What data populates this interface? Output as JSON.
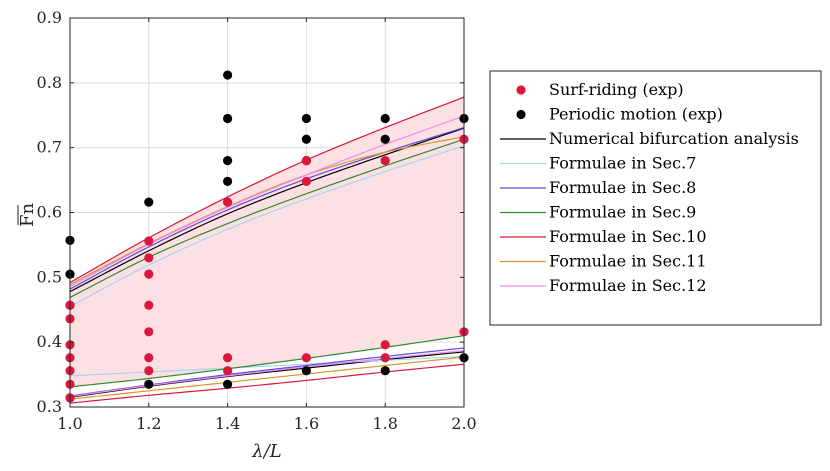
{
  "chart_data": {
    "type": "scatter",
    "title": "",
    "xlabel": "λ/L",
    "ylabel": "Fn (overline)",
    "xlim": [
      1.0,
      2.0
    ],
    "ylim": [
      0.3,
      0.9
    ],
    "x_ticks": [
      1.0,
      1.2,
      1.4,
      1.6,
      1.8,
      2.0
    ],
    "x_tick_labels": [
      "1.0",
      "1.2",
      "1.4",
      "1.6",
      "1.8",
      "2.0"
    ],
    "y_ticks": [
      0.3,
      0.4,
      0.5,
      0.6,
      0.7,
      0.8,
      0.9
    ],
    "y_tick_labels": [
      "0.3",
      "0.4",
      "0.5",
      "0.6",
      "0.7",
      "0.8",
      "0.9"
    ],
    "grid": true,
    "legend_position": "outside-right",
    "shaded_region": {
      "color": "#fde0e4",
      "upper_series": "Formulae in Sec.10",
      "lower_series": "Formulae in Sec.9"
    },
    "scatter_series": [
      {
        "name": "Surf-riding (exp)",
        "color": "#d9183b",
        "x": [
          1.0,
          1.0,
          1.0,
          1.0,
          1.0,
          1.0,
          1.0,
          1.2,
          1.2,
          1.2,
          1.2,
          1.2,
          1.2,
          1.2,
          1.4,
          1.4,
          1.4,
          1.6,
          1.6,
          1.6,
          1.8,
          1.8,
          1.8,
          2.0,
          2.0
        ],
        "y": [
          0.314,
          0.335,
          0.356,
          0.376,
          0.396,
          0.436,
          0.457,
          0.356,
          0.376,
          0.416,
          0.457,
          0.505,
          0.53,
          0.556,
          0.356,
          0.376,
          0.616,
          0.376,
          0.648,
          0.68,
          0.376,
          0.396,
          0.68,
          0.416,
          0.713
        ]
      },
      {
        "name": "Periodic motion (exp)",
        "color": "#000000",
        "x": [
          1.0,
          1.0,
          1.0,
          1.0,
          1.2,
          1.2,
          1.4,
          1.4,
          1.4,
          1.4,
          1.4,
          1.6,
          1.6,
          1.6,
          1.6,
          1.8,
          1.8,
          1.8,
          2.0,
          2.0
        ],
        "y": [
          0.314,
          0.457,
          0.505,
          0.557,
          0.335,
          0.616,
          0.335,
          0.648,
          0.68,
          0.745,
          0.812,
          0.356,
          0.68,
          0.713,
          0.745,
          0.356,
          0.713,
          0.745,
          0.376,
          0.745
        ]
      }
    ],
    "line_series": [
      {
        "name": "Numerical bifurcation analysis",
        "color": "#000000",
        "x": [
          1.0,
          1.2,
          1.4,
          1.6,
          1.8,
          2.0
        ],
        "upper": [
          0.478,
          0.541,
          0.598,
          0.646,
          0.689,
          0.73
        ],
        "lower": [
          0.315,
          0.332,
          0.347,
          0.36,
          0.373,
          0.385
        ]
      },
      {
        "name": "Formulae in Sec.7",
        "color": "#a8d4ec",
        "x": [
          1.0,
          1.2,
          1.4,
          1.6,
          1.8,
          2.0
        ],
        "upper": [
          0.455,
          0.519,
          0.574,
          0.621,
          0.663,
          0.703
        ],
        "lower": [
          0.348,
          0.354,
          0.36,
          0.366,
          0.372,
          0.378
        ]
      },
      {
        "name": "Formulae in Sec.8",
        "color": "#5a4de0",
        "x": [
          1.0,
          1.2,
          1.4,
          1.6,
          1.8,
          2.0
        ],
        "upper": [
          0.482,
          0.547,
          0.604,
          0.652,
          0.693,
          0.731
        ],
        "lower": [
          0.317,
          0.334,
          0.35,
          0.364,
          0.378,
          0.391
        ]
      },
      {
        "name": "Formulae in Sec.9",
        "color": "#2e8b2e",
        "x": [
          1.0,
          1.2,
          1.4,
          1.6,
          1.8,
          2.0
        ],
        "upper": [
          0.469,
          0.531,
          0.583,
          0.629,
          0.672,
          0.713
        ],
        "lower": [
          0.331,
          0.344,
          0.359,
          0.375,
          0.392,
          0.41
        ]
      },
      {
        "name": "Formulae in Sec.10",
        "color": "#d9183b",
        "x": [
          1.0,
          1.2,
          1.4,
          1.6,
          1.8,
          2.0
        ],
        "upper": [
          0.492,
          0.561,
          0.624,
          0.681,
          0.731,
          0.778
        ],
        "lower": [
          0.306,
          0.318,
          0.329,
          0.341,
          0.354,
          0.366
        ]
      },
      {
        "name": "Formulae in Sec.11",
        "color": "#d49a2a",
        "x": [
          1.0,
          1.2,
          1.4,
          1.6,
          1.8,
          2.0
        ],
        "upper": [
          0.489,
          0.552,
          0.609,
          0.658,
          0.693,
          0.717
        ],
        "lower": [
          0.312,
          0.325,
          0.338,
          0.351,
          0.364,
          0.377
        ]
      },
      {
        "name": "Formulae in Sec.12",
        "color": "#f08cf0",
        "x": [
          1.0,
          1.2,
          1.4,
          1.6,
          1.8,
          2.0
        ],
        "upper": [
          0.486,
          0.551,
          0.608,
          0.658,
          0.705,
          0.749
        ],
        "lower": [
          0.316,
          0.333,
          0.348,
          0.362,
          0.375,
          0.387
        ]
      }
    ]
  }
}
